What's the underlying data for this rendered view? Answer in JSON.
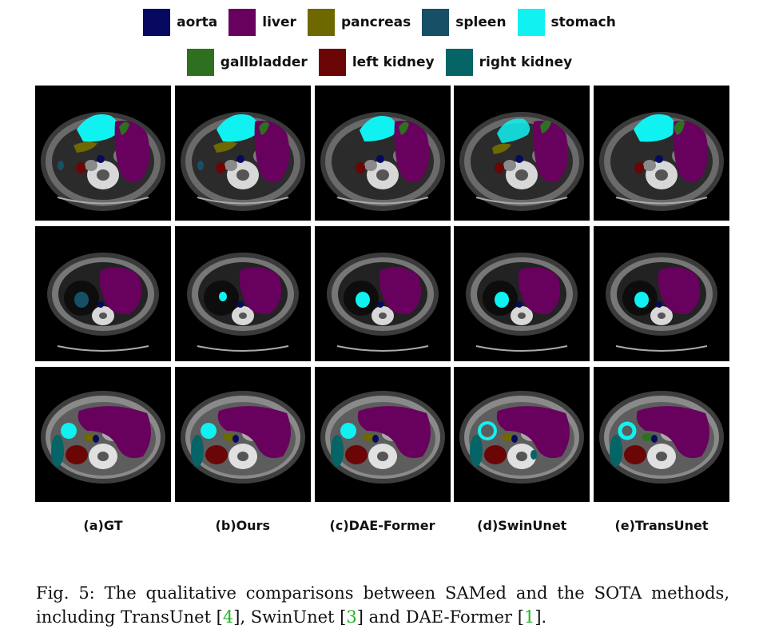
{
  "legend": {
    "row1": [
      {
        "label": "aorta",
        "color": "#07085f"
      },
      {
        "label": "liver",
        "color": "#68005e"
      },
      {
        "label": "pancreas",
        "color": "#6d6800"
      },
      {
        "label": "spleen",
        "color": "#175066"
      },
      {
        "label": "stomach",
        "color": "#10f2f2"
      }
    ],
    "row2": [
      {
        "label": "gallbladder",
        "color": "#2d7120"
      },
      {
        "label": "left kidney",
        "color": "#6b0606"
      },
      {
        "label": "right kidney",
        "color": "#056466"
      }
    ]
  },
  "columns": [
    "(a)GT",
    "(b)Ours",
    "(c)DAE-Former",
    "(d)SwinUnet",
    "(e)TransUnet"
  ],
  "caption": {
    "line1": "Fig. 5: The qualitative comparisons between SAMed and the SOTA methods,",
    "line2_pre": "including TransUnet [",
    "ref1": "4",
    "line2_mid1": "], SwinUnet [",
    "ref2": "3",
    "line2_mid2": "] and DAE-Former [",
    "ref3": "1",
    "line2_post": "]."
  }
}
